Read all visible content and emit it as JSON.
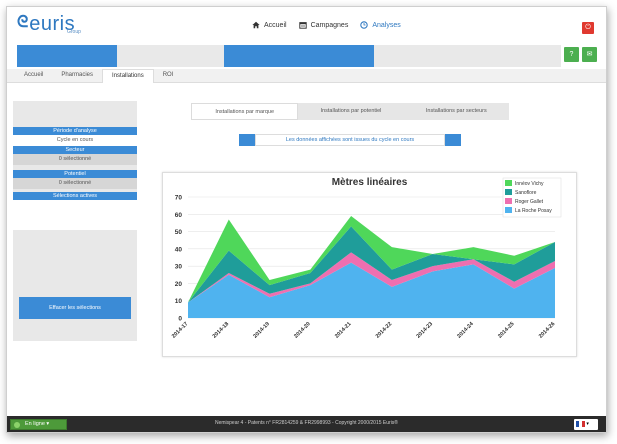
{
  "brand": {
    "name": "euris",
    "sub": "Group"
  },
  "nav": {
    "items": [
      {
        "label": "Accueil",
        "icon": "home-icon"
      },
      {
        "label": "Campagnes",
        "icon": "calendar-icon"
      },
      {
        "label": "Analyses",
        "icon": "clock-icon",
        "active": true
      }
    ]
  },
  "tabs": [
    {
      "label": "Accueil"
    },
    {
      "label": "Pharmacies"
    },
    {
      "label": "Installations",
      "active": true
    },
    {
      "label": "ROI"
    }
  ],
  "sidebar": {
    "periode_head": "Période d'analyse",
    "periode_val": "Cycle en cours",
    "secteur_head": "Secteur",
    "secteur_val": "0 sélectionné",
    "potentiel_head": "Potentiel",
    "potentiel_val": "0 sélectionné",
    "selections_head": "Sélections actives",
    "clear_button": "Effacer les sélections"
  },
  "subtabs": [
    {
      "label": "Installations par marque",
      "active": true
    },
    {
      "label": "Installations par potentiel"
    },
    {
      "label": "Installations par secteurs"
    }
  ],
  "info_text": "Les données affichées sont issues du cycle en cours",
  "footer": {
    "online": "En ligne",
    "copyright": "Nemispear 4 - Patents n° FR2814259 & FR2998993 - Copyright 2000/2015 Euris®"
  },
  "colors": {
    "accent": "#3b8bd6",
    "green_button": "#4caf50",
    "power_button": "#e0392f"
  },
  "chart_data": {
    "type": "area",
    "title": "Mètres linéaires",
    "categories": [
      "2014-17",
      "2014-18",
      "2014-19",
      "2014-20",
      "2014-21",
      "2014-22",
      "2014-23",
      "2014-24",
      "2014-25",
      "2014-26"
    ],
    "ylim": [
      0,
      70
    ],
    "yticks": [
      0,
      10,
      20,
      30,
      40,
      50,
      60,
      70
    ],
    "stacked": true,
    "legend_position": "top-right",
    "series": [
      {
        "name": "La Roche Posay",
        "color": "#4fb3ef",
        "values": [
          9,
          25,
          12,
          19,
          32,
          18,
          27,
          31,
          17,
          29
        ]
      },
      {
        "name": "Roger Gallet",
        "color": "#ee6fb0",
        "values": [
          0,
          1,
          2,
          1,
          6,
          4,
          3,
          3,
          4,
          4
        ]
      },
      {
        "name": "Sanoflore",
        "color": "#1f9d9a",
        "values": [
          0,
          13,
          5,
          6,
          15,
          6,
          7,
          0,
          10,
          11
        ]
      },
      {
        "name": "Innéov Vichy",
        "color": "#4fd75a",
        "values": [
          0,
          18,
          3,
          2,
          6,
          13,
          0,
          7,
          5,
          0
        ]
      }
    ]
  }
}
